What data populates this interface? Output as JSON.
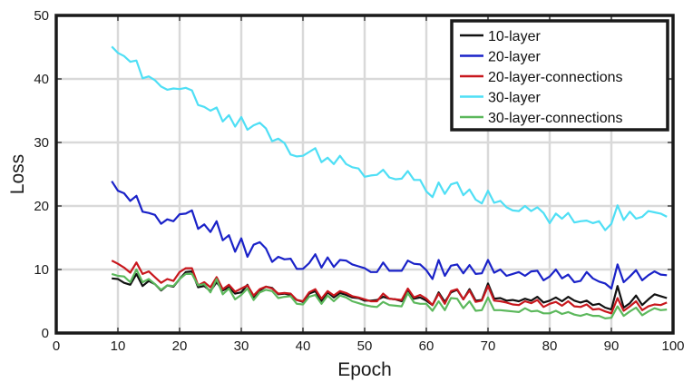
{
  "chart_data": {
    "type": "line",
    "xlabel": "Epoch",
    "ylabel": "Loss",
    "xlim": [
      0,
      100
    ],
    "ylim": [
      0,
      50
    ],
    "xticks": [
      0,
      10,
      20,
      30,
      40,
      50,
      60,
      70,
      80,
      90,
      100
    ],
    "yticks": [
      0,
      10,
      20,
      30,
      40,
      50
    ],
    "xtick_labels": [
      "0",
      "10",
      "20",
      "30",
      "40",
      "50",
      "60",
      "70",
      "80",
      "90",
      "100"
    ],
    "ytick_labels": [
      "0",
      "10",
      "20",
      "30",
      "40",
      "50"
    ],
    "grid": true,
    "legend_position": "top-right",
    "series": [
      {
        "name": "10-layer",
        "color": "#111111",
        "x": [
          9,
          10,
          11,
          12,
          13,
          14,
          15,
          16,
          17,
          18,
          19,
          20,
          21,
          22,
          23,
          24,
          25,
          26,
          27,
          28,
          29,
          30,
          31,
          32,
          33,
          34,
          35,
          36,
          37,
          38,
          39,
          40,
          41,
          42,
          43,
          44,
          45,
          46,
          47,
          48,
          49,
          50,
          51,
          52,
          53,
          54,
          55,
          56,
          57,
          58,
          59,
          60,
          61,
          62,
          63,
          64,
          65,
          66,
          67,
          68,
          69,
          70,
          71,
          72,
          73,
          74,
          75,
          76,
          77,
          78,
          79,
          80,
          81,
          82,
          83,
          84,
          85,
          86,
          87,
          88,
          89,
          90,
          91,
          92,
          93,
          94,
          95,
          96,
          97,
          98,
          99
        ],
        "y": [
          8.6,
          8.5,
          7.9,
          7.6,
          9.3,
          7.4,
          8.2,
          7.7,
          6.7,
          7.5,
          7.3,
          8.5,
          9.6,
          9.7,
          7.2,
          7.4,
          6.6,
          8.0,
          6.7,
          7.2,
          6.2,
          6.4,
          7.6,
          5.6,
          6.7,
          7.3,
          7.1,
          6.1,
          6.2,
          6.0,
          5.2,
          4.9,
          6.2,
          6.6,
          5.0,
          6.4,
          5.6,
          6.3,
          6.0,
          5.6,
          5.5,
          5.1,
          5.1,
          5.2,
          5.7,
          5.4,
          5.3,
          5.0,
          6.8,
          5.4,
          5.6,
          5.1,
          4.4,
          6.4,
          4.9,
          6.4,
          6.8,
          5.3,
          6.9,
          5.1,
          5.2,
          7.8,
          5.4,
          5.5,
          5.1,
          5.2,
          5.0,
          5.4,
          5.1,
          5.7,
          4.8,
          5.1,
          5.6,
          5.0,
          5.7,
          5.1,
          4.8,
          5.1,
          4.4,
          4.6,
          4.0,
          3.7,
          7.4,
          4.0,
          4.7,
          5.9,
          4.4,
          5.3,
          6.1,
          5.8,
          5.5
        ]
      },
      {
        "name": "20-layer",
        "color": "#1a22c8",
        "x": [
          9,
          10,
          11,
          12,
          13,
          14,
          15,
          16,
          17,
          18,
          19,
          20,
          21,
          22,
          23,
          24,
          25,
          26,
          27,
          28,
          29,
          30,
          31,
          32,
          33,
          34,
          35,
          36,
          37,
          38,
          39,
          40,
          41,
          42,
          43,
          44,
          45,
          46,
          47,
          48,
          49,
          50,
          51,
          52,
          53,
          54,
          55,
          56,
          57,
          58,
          59,
          60,
          61,
          62,
          63,
          64,
          65,
          66,
          67,
          68,
          69,
          70,
          71,
          72,
          73,
          74,
          75,
          76,
          77,
          78,
          79,
          80,
          81,
          82,
          83,
          84,
          85,
          86,
          87,
          88,
          89,
          90,
          91,
          92,
          93,
          94,
          95,
          96,
          97,
          98,
          99
        ],
        "y": [
          23.9,
          22.4,
          22.0,
          20.8,
          21.6,
          19.1,
          18.9,
          18.6,
          17.2,
          17.9,
          17.6,
          18.7,
          18.8,
          19.3,
          16.4,
          17.1,
          15.9,
          17.6,
          14.6,
          15.4,
          12.8,
          14.9,
          12.0,
          13.9,
          14.3,
          13.3,
          11.2,
          12.0,
          11.6,
          11.7,
          10.1,
          10.1,
          11.0,
          12.4,
          10.3,
          11.9,
          10.4,
          11.5,
          11.4,
          10.8,
          10.5,
          10.2,
          9.6,
          9.6,
          11.1,
          9.8,
          9.8,
          9.8,
          11.4,
          10.9,
          10.8,
          9.9,
          8.5,
          11.5,
          9.0,
          10.6,
          10.8,
          9.4,
          10.7,
          9.3,
          9.4,
          11.5,
          9.5,
          10.0,
          9.0,
          9.3,
          9.6,
          9.0,
          9.7,
          9.8,
          8.3,
          8.9,
          10.0,
          8.6,
          9.2,
          8.0,
          8.2,
          9.6,
          8.6,
          8.1,
          7.8,
          7.0,
          10.8,
          8.0,
          8.9,
          9.9,
          8.3,
          9.1,
          9.7,
          9.2,
          9.1
        ]
      },
      {
        "name": "20-layer-connections",
        "color": "#c8171d",
        "x": [
          9,
          10,
          11,
          12,
          13,
          14,
          15,
          16,
          17,
          18,
          19,
          20,
          21,
          22,
          23,
          24,
          25,
          26,
          27,
          28,
          29,
          30,
          31,
          32,
          33,
          34,
          35,
          36,
          37,
          38,
          39,
          40,
          41,
          42,
          43,
          44,
          45,
          46,
          47,
          48,
          49,
          50,
          51,
          52,
          53,
          54,
          55,
          56,
          57,
          58,
          59,
          60,
          61,
          62,
          63,
          64,
          65,
          66,
          67,
          68,
          69,
          70,
          71,
          72,
          73,
          74,
          75,
          76,
          77,
          78,
          79,
          80,
          81,
          82,
          83,
          84,
          85,
          86,
          87,
          88,
          89,
          90,
          91,
          92,
          93,
          94,
          95,
          96,
          97,
          98,
          99
        ],
        "y": [
          11.4,
          10.9,
          10.3,
          9.5,
          11.1,
          9.3,
          9.7,
          8.8,
          7.9,
          8.5,
          8.2,
          9.6,
          10.2,
          10.2,
          7.5,
          8.0,
          7.2,
          8.8,
          6.9,
          7.6,
          6.5,
          7.0,
          7.5,
          5.9,
          6.9,
          7.3,
          7.0,
          6.2,
          6.3,
          6.2,
          5.2,
          5.0,
          6.4,
          6.9,
          5.4,
          6.6,
          5.9,
          6.6,
          6.3,
          5.8,
          5.6,
          5.3,
          5.0,
          5.0,
          6.2,
          5.4,
          5.3,
          5.2,
          7.0,
          5.6,
          6.0,
          5.4,
          4.4,
          6.2,
          4.6,
          6.6,
          6.9,
          5.3,
          6.7,
          4.9,
          5.1,
          7.4,
          5.1,
          5.0,
          4.8,
          4.5,
          4.4,
          5.0,
          4.7,
          5.2,
          4.1,
          4.6,
          4.9,
          4.3,
          5.0,
          4.2,
          4.1,
          4.5,
          3.7,
          3.8,
          3.4,
          3.1,
          5.5,
          3.5,
          4.2,
          5.0,
          3.6,
          4.2,
          4.5,
          4.4,
          4.8
        ]
      },
      {
        "name": "30-layer",
        "color": "#4fdff5",
        "x": [
          9,
          10,
          11,
          12,
          13,
          14,
          15,
          16,
          17,
          18,
          19,
          20,
          21,
          22,
          23,
          24,
          25,
          26,
          27,
          28,
          29,
          30,
          31,
          32,
          33,
          34,
          35,
          36,
          37,
          38,
          39,
          40,
          41,
          42,
          43,
          44,
          45,
          46,
          47,
          48,
          49,
          50,
          51,
          52,
          53,
          54,
          55,
          56,
          57,
          58,
          59,
          60,
          61,
          62,
          63,
          64,
          65,
          66,
          67,
          68,
          69,
          70,
          71,
          72,
          73,
          74,
          75,
          76,
          77,
          78,
          79,
          80,
          81,
          82,
          83,
          84,
          85,
          86,
          87,
          88,
          89,
          90,
          91,
          92,
          93,
          94,
          95,
          96,
          97,
          98,
          99
        ],
        "y": [
          45.1,
          44.1,
          43.6,
          42.7,
          42.9,
          40.1,
          40.4,
          39.8,
          38.8,
          38.3,
          38.5,
          38.4,
          38.6,
          38.2,
          35.9,
          35.6,
          35.0,
          35.5,
          33.3,
          34.3,
          32.5,
          34.0,
          32.0,
          32.7,
          33.1,
          32.2,
          30.2,
          30.6,
          29.9,
          28.1,
          27.8,
          27.9,
          28.5,
          29.1,
          26.9,
          27.6,
          26.6,
          27.9,
          26.6,
          26.1,
          25.9,
          24.6,
          24.8,
          24.9,
          25.7,
          24.5,
          24.2,
          24.3,
          25.5,
          24.1,
          24.1,
          22.3,
          21.4,
          23.7,
          21.9,
          23.4,
          23.7,
          21.7,
          22.6,
          21.0,
          20.4,
          22.4,
          20.5,
          20.8,
          19.8,
          19.3,
          19.2,
          20.0,
          19.2,
          19.8,
          18.9,
          17.3,
          18.8,
          18.0,
          18.9,
          17.4,
          17.6,
          17.7,
          17.3,
          17.6,
          16.2,
          17.2,
          20.1,
          17.8,
          19.1,
          18.0,
          18.3,
          19.2,
          19.0,
          18.8,
          18.3
        ]
      },
      {
        "name": "30-layer-connections",
        "color": "#5cb85c",
        "x": [
          9,
          10,
          11,
          12,
          13,
          14,
          15,
          16,
          17,
          18,
          19,
          20,
          21,
          22,
          23,
          24,
          25,
          26,
          27,
          28,
          29,
          30,
          31,
          32,
          33,
          34,
          35,
          36,
          37,
          38,
          39,
          40,
          41,
          42,
          43,
          44,
          45,
          46,
          47,
          48,
          49,
          50,
          51,
          52,
          53,
          54,
          55,
          56,
          57,
          58,
          59,
          60,
          61,
          62,
          63,
          64,
          65,
          66,
          67,
          68,
          69,
          70,
          71,
          72,
          73,
          74,
          75,
          76,
          77,
          78,
          79,
          80,
          81,
          82,
          83,
          84,
          85,
          86,
          87,
          88,
          89,
          90,
          91,
          92,
          93,
          94,
          95,
          96,
          97,
          98,
          99
        ],
        "y": [
          9.3,
          9.0,
          8.9,
          8.0,
          10.0,
          8.0,
          8.5,
          7.7,
          6.8,
          7.5,
          7.4,
          8.5,
          9.3,
          9.3,
          7.5,
          7.7,
          6.4,
          8.5,
          6.1,
          7.0,
          5.3,
          6.0,
          7.0,
          5.2,
          6.4,
          6.8,
          6.6,
          5.5,
          5.7,
          5.8,
          4.6,
          4.5,
          5.7,
          6.0,
          4.6,
          5.9,
          5.0,
          5.9,
          5.6,
          5.0,
          4.7,
          4.4,
          4.2,
          4.1,
          4.9,
          4.4,
          4.3,
          4.2,
          6.3,
          4.8,
          4.6,
          4.6,
          3.5,
          5.0,
          3.6,
          5.5,
          5.4,
          3.9,
          5.0,
          3.5,
          3.6,
          5.6,
          3.6,
          3.6,
          3.5,
          3.4,
          3.3,
          3.9,
          3.4,
          3.5,
          3.1,
          3.1,
          3.5,
          3.0,
          3.3,
          2.9,
          2.7,
          3.0,
          2.7,
          2.7,
          2.3,
          2.4,
          4.2,
          2.7,
          3.4,
          4.0,
          2.8,
          3.4,
          3.9,
          3.6,
          3.7
        ]
      }
    ]
  }
}
